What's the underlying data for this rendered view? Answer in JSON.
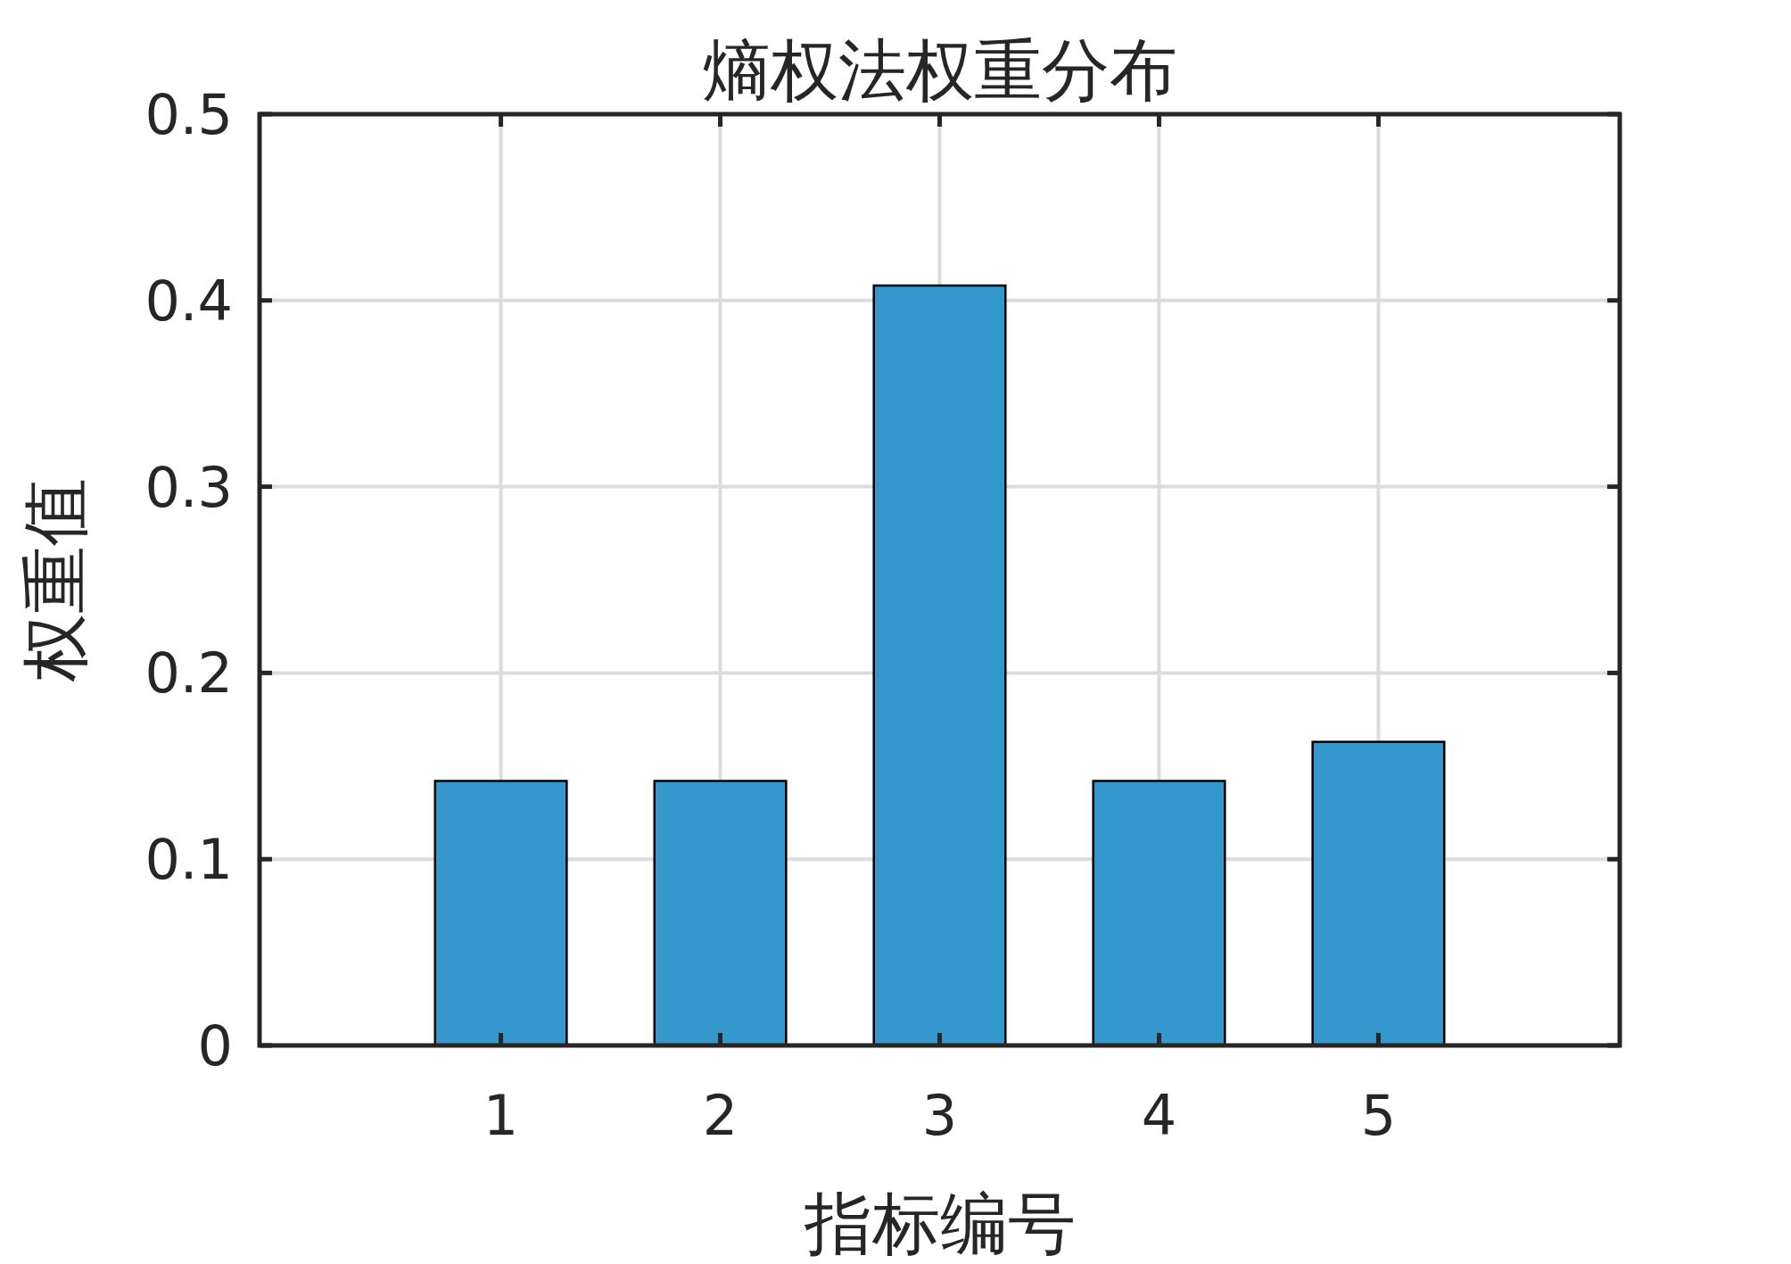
{
  "chart_data": {
    "type": "bar",
    "title": "熵权法权重分布",
    "xlabel": "指标编号",
    "ylabel": "权重值",
    "x": [
      1,
      2,
      3,
      4,
      5
    ],
    "values": [
      0.142,
      0.142,
      0.408,
      0.142,
      0.163
    ],
    "color": "#3498cc",
    "xlim": [
      -0.1,
      6.1
    ],
    "xticks": [
      1,
      2,
      3,
      4,
      5
    ],
    "ylim": [
      0,
      0.5
    ],
    "yticks": [
      0,
      0.1,
      0.2,
      0.3,
      0.4,
      0.5
    ],
    "grid": true
  }
}
